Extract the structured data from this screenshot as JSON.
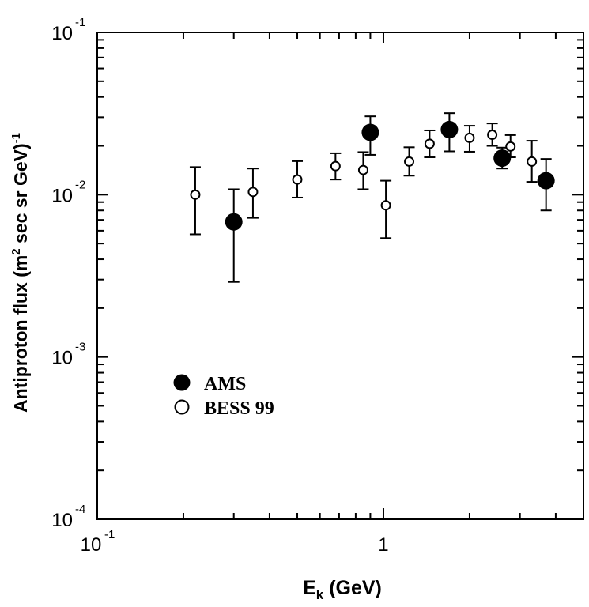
{
  "chart_data": {
    "type": "scatter",
    "xlabel": {
      "base": "E",
      "sub": "k",
      "rest": " (GeV)"
    },
    "ylabel": {
      "pre": "Antiproton flux (m",
      "sup1": "2",
      "mid": " sec sr GeV)",
      "sup2": "-1"
    },
    "xscale": "log",
    "yscale": "log",
    "xlim": [
      0.1,
      5
    ],
    "ylim": [
      0.0001,
      0.1
    ],
    "x_ticks": [
      {
        "value": 0.1,
        "base": "10",
        "exp": "-1"
      },
      {
        "value": 1,
        "base": "1",
        "exp": ""
      }
    ],
    "y_ticks": [
      {
        "value": 0.0001,
        "base": "10",
        "exp": "-4"
      },
      {
        "value": 0.001,
        "base": "10",
        "exp": "-3"
      },
      {
        "value": 0.01,
        "base": "10",
        "exp": "-2"
      },
      {
        "value": 0.1,
        "base": "10",
        "exp": "-1"
      }
    ],
    "legend_position": "lower-left",
    "series": [
      {
        "name": "AMS",
        "marker": "filled-circle",
        "points": [
          {
            "x": 0.3,
            "y": 0.0068,
            "ylo": 0.0029,
            "yhi": 0.0108
          },
          {
            "x": 0.9,
            "y": 0.0242,
            "ylo": 0.0176,
            "yhi": 0.0304
          },
          {
            "x": 1.7,
            "y": 0.0252,
            "ylo": 0.0185,
            "yhi": 0.0318
          },
          {
            "x": 2.6,
            "y": 0.0168,
            "ylo": 0.0145,
            "yhi": 0.0195
          },
          {
            "x": 3.7,
            "y": 0.0122,
            "ylo": 0.008,
            "yhi": 0.0166
          }
        ]
      },
      {
        "name": "BESS 99",
        "marker": "open-circle",
        "points": [
          {
            "x": 0.22,
            "y": 0.01,
            "ylo": 0.0057,
            "yhi": 0.0148
          },
          {
            "x": 0.35,
            "y": 0.0104,
            "ylo": 0.0072,
            "yhi": 0.0145
          },
          {
            "x": 0.5,
            "y": 0.0124,
            "ylo": 0.0096,
            "yhi": 0.0161
          },
          {
            "x": 0.68,
            "y": 0.015,
            "ylo": 0.0124,
            "yhi": 0.018
          },
          {
            "x": 0.85,
            "y": 0.0142,
            "ylo": 0.0108,
            "yhi": 0.0183
          },
          {
            "x": 1.02,
            "y": 0.0086,
            "ylo": 0.0054,
            "yhi": 0.0122
          },
          {
            "x": 1.23,
            "y": 0.016,
            "ylo": 0.0131,
            "yhi": 0.0196
          },
          {
            "x": 1.45,
            "y": 0.0206,
            "ylo": 0.017,
            "yhi": 0.0249
          },
          {
            "x": 2.0,
            "y": 0.0224,
            "ylo": 0.0184,
            "yhi": 0.0266
          },
          {
            "x": 2.4,
            "y": 0.0234,
            "ylo": 0.02,
            "yhi": 0.0275
          },
          {
            "x": 2.78,
            "y": 0.0198,
            "ylo": 0.017,
            "yhi": 0.0233
          },
          {
            "x": 3.3,
            "y": 0.016,
            "ylo": 0.012,
            "yhi": 0.0215
          }
        ]
      }
    ]
  }
}
